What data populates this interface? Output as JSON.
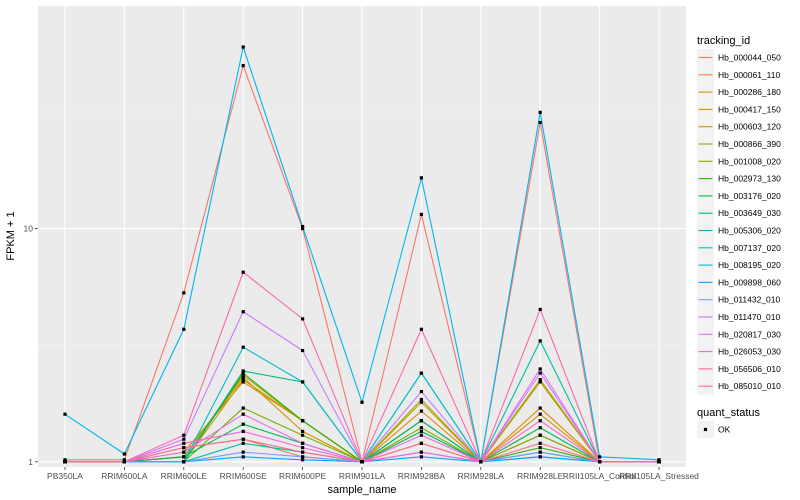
{
  "chart_data": {
    "type": "line",
    "title": "",
    "xlabel": "sample_name",
    "ylabel": "FPKM + 1",
    "y_scale": "log10",
    "ylim": [
      0.95,
      90
    ],
    "y_ticks": [
      1,
      10
    ],
    "y_tick_labels": [
      "1",
      "10"
    ],
    "grid": true,
    "legend_position": "right",
    "categories": [
      "PB350LA",
      "RRIM600LA",
      "RRIM600LE",
      "RRIM600SE",
      "RRIM600PE",
      "RRIM901LA",
      "RRIM928BA",
      "RRIM928LA",
      "RRIM928LE",
      "RRII105LA_Control",
      "RRII105LA_Stressed"
    ],
    "legend_title": "tracking_id",
    "series": [
      {
        "name": "Hb_000044_050",
        "color": "#F8766D",
        "values": [
          1.02,
          1.02,
          5.3,
          50,
          10.0,
          1.0,
          11.5,
          1.0,
          28.5,
          1.0,
          1.0
        ]
      },
      {
        "name": "Hb_000061_110",
        "color": "#F07F3E",
        "values": [
          1.0,
          1.0,
          1.15,
          1.25,
          1.05,
          1.0,
          1.2,
          1.0,
          1.3,
          1.0,
          1.0
        ]
      },
      {
        "name": "Hb_000286_180",
        "color": "#E38900",
        "values": [
          1.0,
          1.0,
          1.1,
          2.2,
          1.5,
          1.0,
          1.65,
          1.0,
          1.7,
          1.0,
          1.0
        ]
      },
      {
        "name": "Hb_000417_150",
        "color": "#D39200",
        "values": [
          1.0,
          1.0,
          1.05,
          2.3,
          1.35,
          1.0,
          1.5,
          1.0,
          1.6,
          1.0,
          1.0
        ]
      },
      {
        "name": "Hb_000603_120",
        "color": "#BF9C00",
        "values": [
          1.0,
          1.0,
          1.0,
          2.25,
          1.5,
          1.0,
          1.8,
          1.0,
          2.2,
          1.0,
          1.0
        ]
      },
      {
        "name": "Hb_000866_390",
        "color": "#A4A500",
        "values": [
          1.0,
          1.0,
          1.05,
          2.35,
          1.5,
          1.0,
          1.85,
          1.0,
          2.25,
          1.0,
          1.0
        ]
      },
      {
        "name": "Hb_001008_020",
        "color": "#7CAE00",
        "values": [
          1.0,
          1.0,
          1.0,
          1.7,
          1.3,
          1.0,
          1.4,
          1.0,
          1.3,
          1.0,
          1.0
        ]
      },
      {
        "name": "Hb_002973_130",
        "color": "#26B300",
        "values": [
          1.0,
          1.0,
          1.0,
          2.4,
          1.5,
          1.0,
          1.5,
          1.0,
          1.15,
          1.0,
          1.0
        ]
      },
      {
        "name": "Hb_003176_020",
        "color": "#00B74A",
        "values": [
          1.0,
          1.0,
          1.05,
          1.45,
          1.2,
          1.0,
          1.35,
          1.0,
          1.4,
          1.0,
          1.0
        ]
      },
      {
        "name": "Hb_003649_030",
        "color": "#00BA7F",
        "values": [
          1.0,
          1.0,
          1.0,
          2.45,
          2.2,
          1.0,
          1.5,
          1.0,
          1.1,
          1.0,
          1.0
        ]
      },
      {
        "name": "Hb_005306_020",
        "color": "#00BDA7",
        "values": [
          1.0,
          1.0,
          1.0,
          1.2,
          1.1,
          1.0,
          2.4,
          1.0,
          3.3,
          1.0,
          1.0
        ]
      },
      {
        "name": "Hb_007137_020",
        "color": "#00BDCA",
        "values": [
          1.0,
          1.0,
          1.0,
          3.1,
          2.2,
          1.0,
          2.4,
          1.0,
          1.05,
          1.0,
          1.0
        ]
      },
      {
        "name": "Hb_008195_020",
        "color": "#00B6EB",
        "values": [
          1.6,
          1.08,
          3.7,
          60,
          10.2,
          1.8,
          16.5,
          1.0,
          31.5,
          1.05,
          1.02
        ]
      },
      {
        "name": "Hb_009898_060",
        "color": "#00A9FF",
        "values": [
          1.0,
          1.0,
          1.0,
          1.05,
          1.02,
          1.0,
          1.05,
          1.0,
          1.05,
          1.0,
          1.0
        ]
      },
      {
        "name": "Hb_011432_010",
        "color": "#7C96FF",
        "values": [
          1.0,
          1.0,
          1.0,
          1.1,
          1.05,
          1.0,
          1.1,
          1.0,
          1.1,
          1.0,
          1.0
        ]
      },
      {
        "name": "Hb_011470_010",
        "color": "#C77CFF",
        "values": [
          1.0,
          1.0,
          1.25,
          4.4,
          3.0,
          1.0,
          2.0,
          1.0,
          2.4,
          1.0,
          1.0
        ]
      },
      {
        "name": "Hb_020817_030",
        "color": "#E86BF3",
        "values": [
          1.0,
          1.0,
          1.1,
          1.6,
          1.2,
          1.0,
          1.3,
          1.0,
          2.5,
          1.0,
          1.0
        ]
      },
      {
        "name": "Hb_026053_030",
        "color": "#FA62DB",
        "values": [
          1.0,
          1.0,
          1.2,
          1.35,
          1.15,
          1.0,
          1.1,
          1.0,
          1.5,
          1.0,
          1.0
        ]
      },
      {
        "name": "Hb_056506_010",
        "color": "#FF65B0",
        "values": [
          1.0,
          1.0,
          1.3,
          6.5,
          4.1,
          1.0,
          3.7,
          1.0,
          4.5,
          1.0,
          1.0
        ]
      },
      {
        "name": "Hb_085010_010",
        "color": "#FF6C91",
        "values": [
          1.0,
          1.0,
          1.15,
          1.25,
          1.1,
          1.0,
          1.2,
          1.0,
          1.2,
          1.0,
          1.0
        ]
      }
    ],
    "shape_legend_title": "quant_status",
    "shape_legend_items": [
      "OK"
    ]
  }
}
